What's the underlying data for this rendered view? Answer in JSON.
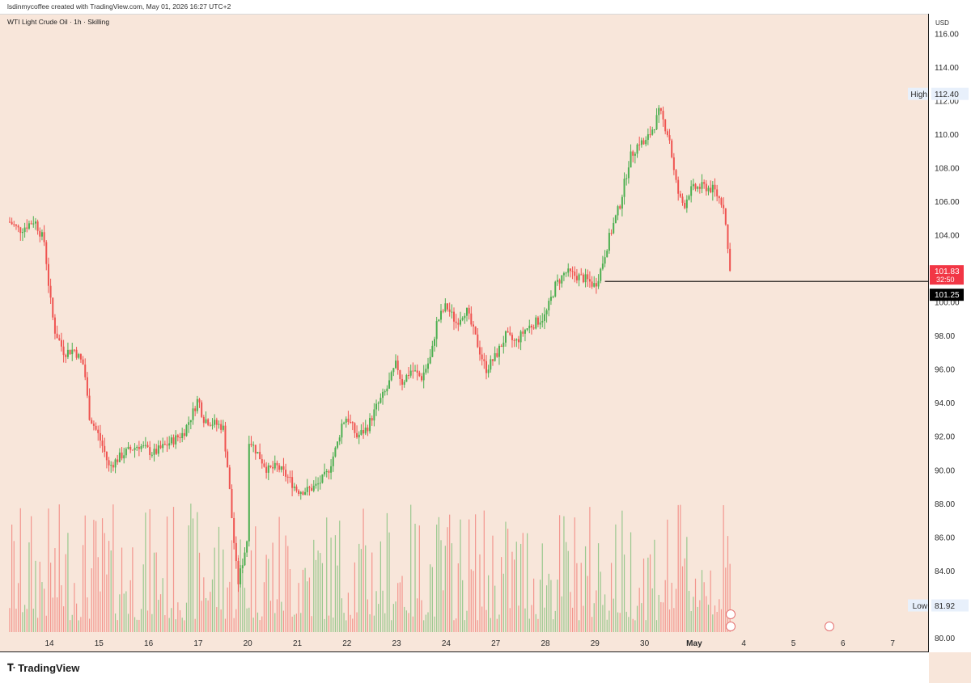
{
  "header": {
    "credit": "lsdinmycoffee created with TradingView.com, May 01, 2026 16:27 UTC+2",
    "symbol": "WTI Light Crude Oil · 1h · Skilling"
  },
  "footer": {
    "brand": "TradingView"
  },
  "colors": {
    "up": "#4caf50",
    "down": "#ef5350",
    "background": "#f8e6da",
    "line": "#000000",
    "last_price_bg": "#f23645"
  },
  "chart_data": {
    "type": "candlestick",
    "currency": "USD",
    "ylim": [
      79.2,
      117.2
    ],
    "y_ticks": [
      "116.00",
      "114.00",
      "112.00",
      "110.00",
      "108.00",
      "106.00",
      "104.00",
      "102.00",
      "100.00",
      "98.00",
      "96.00",
      "94.00",
      "92.00",
      "90.00",
      "88.00",
      "86.00",
      "84.00",
      "82.00",
      "80.00"
    ],
    "x_ticks": [
      {
        "label": "14",
        "day": 0
      },
      {
        "label": "15",
        "day": 1
      },
      {
        "label": "16",
        "day": 2
      },
      {
        "label": "17",
        "day": 3
      },
      {
        "label": "20",
        "day": 4
      },
      {
        "label": "21",
        "day": 5
      },
      {
        "label": "22",
        "day": 6
      },
      {
        "label": "23",
        "day": 7
      },
      {
        "label": "24",
        "day": 8
      },
      {
        "label": "27",
        "day": 9
      },
      {
        "label": "28",
        "day": 10
      },
      {
        "label": "29",
        "day": 11
      },
      {
        "label": "30",
        "day": 12
      },
      {
        "label": "May",
        "day": 13
      },
      {
        "label": "4",
        "day": 14
      },
      {
        "label": "5",
        "day": 15
      },
      {
        "label": "6",
        "day": 16
      },
      {
        "label": "7",
        "day": 17
      }
    ],
    "high_label": "High",
    "high_value": 112.4,
    "high_text": "112.40",
    "low_label": "Low",
    "low_value": 81.92,
    "low_text": "81.92",
    "last_price": 101.83,
    "last_price_text": "101.83",
    "countdown": "32:50",
    "horizontal_line": 101.25,
    "horizontal_line_text": "101.25",
    "horizontal_line_start_day": 11.2,
    "price_path": [
      [
        -0.8,
        104.8
      ],
      [
        -0.6,
        104.3
      ],
      [
        -0.3,
        104.9
      ],
      [
        -0.1,
        103.6
      ],
      [
        0.0,
        100.6
      ],
      [
        0.1,
        98.4
      ],
      [
        0.3,
        97.0
      ],
      [
        0.5,
        97.2
      ],
      [
        0.7,
        96.2
      ],
      [
        0.8,
        93.3
      ],
      [
        1.0,
        92.0
      ],
      [
        1.1,
        91.2
      ],
      [
        1.2,
        90.2
      ],
      [
        1.5,
        91.0
      ],
      [
        1.8,
        91.5
      ],
      [
        2.1,
        91.0
      ],
      [
        2.4,
        91.6
      ],
      [
        2.7,
        92.2
      ],
      [
        2.9,
        93.5
      ],
      [
        3.0,
        94.3
      ],
      [
        3.1,
        93.1
      ],
      [
        3.3,
        92.8
      ],
      [
        3.5,
        92.6
      ],
      [
        3.6,
        90.0
      ],
      [
        3.7,
        86.4
      ],
      [
        3.8,
        83.2
      ],
      [
        3.9,
        84.6
      ],
      [
        4.0,
        86.1
      ],
      [
        4.0,
        92.0
      ],
      [
        4.2,
        91.0
      ],
      [
        4.4,
        90.0
      ],
      [
        4.6,
        90.2
      ],
      [
        4.8,
        89.6
      ],
      [
        5.0,
        88.8
      ],
      [
        5.2,
        88.8
      ],
      [
        5.4,
        89.1
      ],
      [
        5.6,
        89.8
      ],
      [
        5.8,
        91.5
      ],
      [
        5.9,
        92.8
      ],
      [
        6.0,
        93.2
      ],
      [
        6.2,
        92.0
      ],
      [
        6.4,
        92.5
      ],
      [
        6.6,
        93.8
      ],
      [
        6.8,
        94.8
      ],
      [
        6.9,
        95.6
      ],
      [
        7.0,
        96.4
      ],
      [
        7.1,
        95.2
      ],
      [
        7.3,
        96.0
      ],
      [
        7.5,
        95.5
      ],
      [
        7.7,
        96.8
      ],
      [
        7.8,
        98.7
      ],
      [
        7.9,
        99.3
      ],
      [
        8.0,
        99.8
      ],
      [
        8.2,
        98.8
      ],
      [
        8.4,
        99.6
      ],
      [
        8.6,
        97.8
      ],
      [
        8.8,
        96.0
      ],
      [
        9.0,
        96.8
      ],
      [
        9.2,
        98.0
      ],
      [
        9.4,
        97.6
      ],
      [
        9.6,
        98.4
      ],
      [
        9.8,
        98.8
      ],
      [
        10.0,
        99.2
      ],
      [
        10.2,
        101.0
      ],
      [
        10.4,
        101.8
      ],
      [
        10.6,
        101.6
      ],
      [
        10.8,
        101.4
      ],
      [
        11.0,
        101.0
      ],
      [
        11.1,
        101.8
      ],
      [
        11.3,
        104.0
      ],
      [
        11.5,
        105.8
      ],
      [
        11.7,
        108.6
      ],
      [
        11.9,
        109.6
      ],
      [
        12.0,
        109.4
      ],
      [
        12.2,
        110.6
      ],
      [
        12.3,
        111.4
      ],
      [
        12.4,
        110.6
      ],
      [
        12.5,
        109.8
      ],
      [
        12.6,
        107.6
      ],
      [
        12.7,
        106.2
      ],
      [
        12.8,
        105.8
      ],
      [
        12.9,
        106.6
      ],
      [
        13.0,
        106.8
      ],
      [
        13.2,
        106.9
      ],
      [
        13.4,
        106.7
      ],
      [
        13.5,
        106.2
      ],
      [
        13.6,
        105.8
      ],
      [
        13.7,
        102.4
      ],
      [
        13.75,
        101.83
      ]
    ],
    "volume_ylim": [
      0,
      100
    ]
  }
}
